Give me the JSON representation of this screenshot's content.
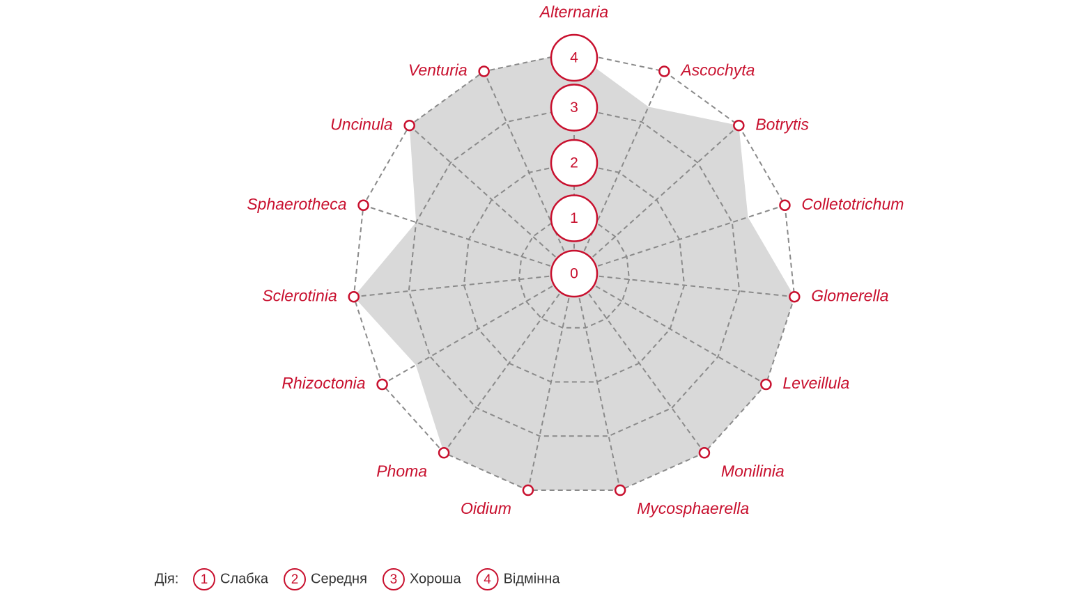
{
  "chart_data": {
    "type": "radar",
    "categories": [
      "Alternaria",
      "Ascochyta",
      "Botrytis",
      "Colletotrichum",
      "Glomerella",
      "Leveillula",
      "Monilinia",
      "Mycosphaerella",
      "Oidium",
      "Phoma",
      "Rhizoctonia",
      "Sclerotinia",
      "Sphaerotheca",
      "Uncinula",
      "Venturia"
    ],
    "values": [
      4,
      3.3,
      4,
      3.3,
      4,
      4,
      4,
      4,
      4,
      4,
      3.3,
      4,
      3,
      4,
      4
    ],
    "color": "#d9d9d9",
    "accent": "#c8102e",
    "ylim": [
      0,
      4
    ],
    "yticks": [
      0,
      1,
      2,
      3,
      4
    ],
    "grid": true,
    "legend": {
      "title": "Дія:",
      "items": [
        {
          "value": 1,
          "label": "Слабка"
        },
        {
          "value": 2,
          "label": "Середня"
        },
        {
          "value": 3,
          "label": "Хороша"
        },
        {
          "value": 4,
          "label": "Відмінна"
        }
      ]
    }
  }
}
